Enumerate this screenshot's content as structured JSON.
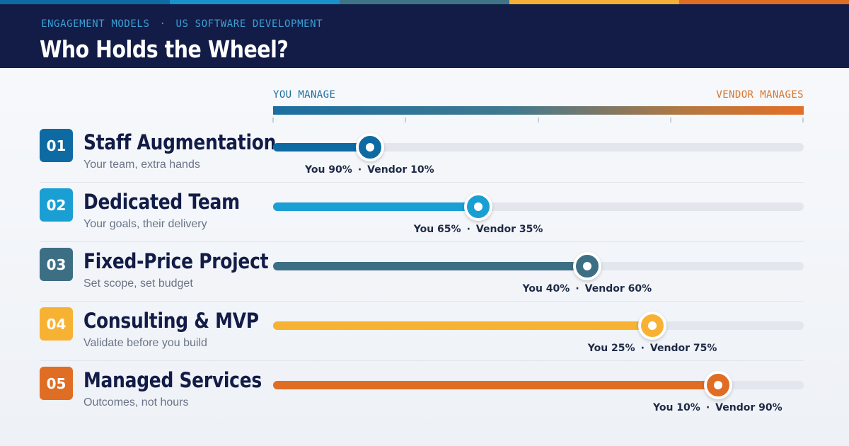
{
  "header": {
    "kicker_left": "ENGAGEMENT MODELS",
    "kicker_sep": "·",
    "kicker_right": "US SOFTWARE DEVELOPMENT",
    "title": "Who Holds the Wheel?"
  },
  "strip_colors": [
    "#0e6aa3",
    "#1a92c9",
    "#3f7388",
    "#f5ae36",
    "#e06d24"
  ],
  "scale": {
    "left_label": "YOU MANAGE",
    "right_label": "VENDOR MANAGES"
  },
  "rows": [
    {
      "number": "01",
      "title": "Staff Augmentation",
      "subtitle": "Your team, extra hands",
      "you": 90,
      "vendor": 10,
      "you_text": "You 90%",
      "vendor_text": "Vendor 10%",
      "color": "#0e6aa3"
    },
    {
      "number": "02",
      "title": "Dedicated Team",
      "subtitle": "Your goals, their delivery",
      "you": 65,
      "vendor": 35,
      "you_text": "You 65%",
      "vendor_text": "Vendor 35%",
      "color": "#1a9fd4"
    },
    {
      "number": "03",
      "title": "Fixed-Price Project",
      "subtitle": "Set scope, set budget",
      "you": 40,
      "vendor": 60,
      "you_text": "You 40%",
      "vendor_text": "Vendor 60%",
      "color": "#3d6f84"
    },
    {
      "number": "04",
      "title": "Consulting & MVP",
      "subtitle": "Validate before you build",
      "you": 25,
      "vendor": 75,
      "you_text": "You 25%",
      "vendor_text": "Vendor 75%",
      "color": "#f7b234"
    },
    {
      "number": "05",
      "title": "Managed Services",
      "subtitle": "Outcomes, not hours",
      "you": 10,
      "vendor": 90,
      "you_text": "You 10%",
      "vendor_text": "Vendor 90%",
      "color": "#e06d24"
    }
  ],
  "readout_sep": "·"
}
